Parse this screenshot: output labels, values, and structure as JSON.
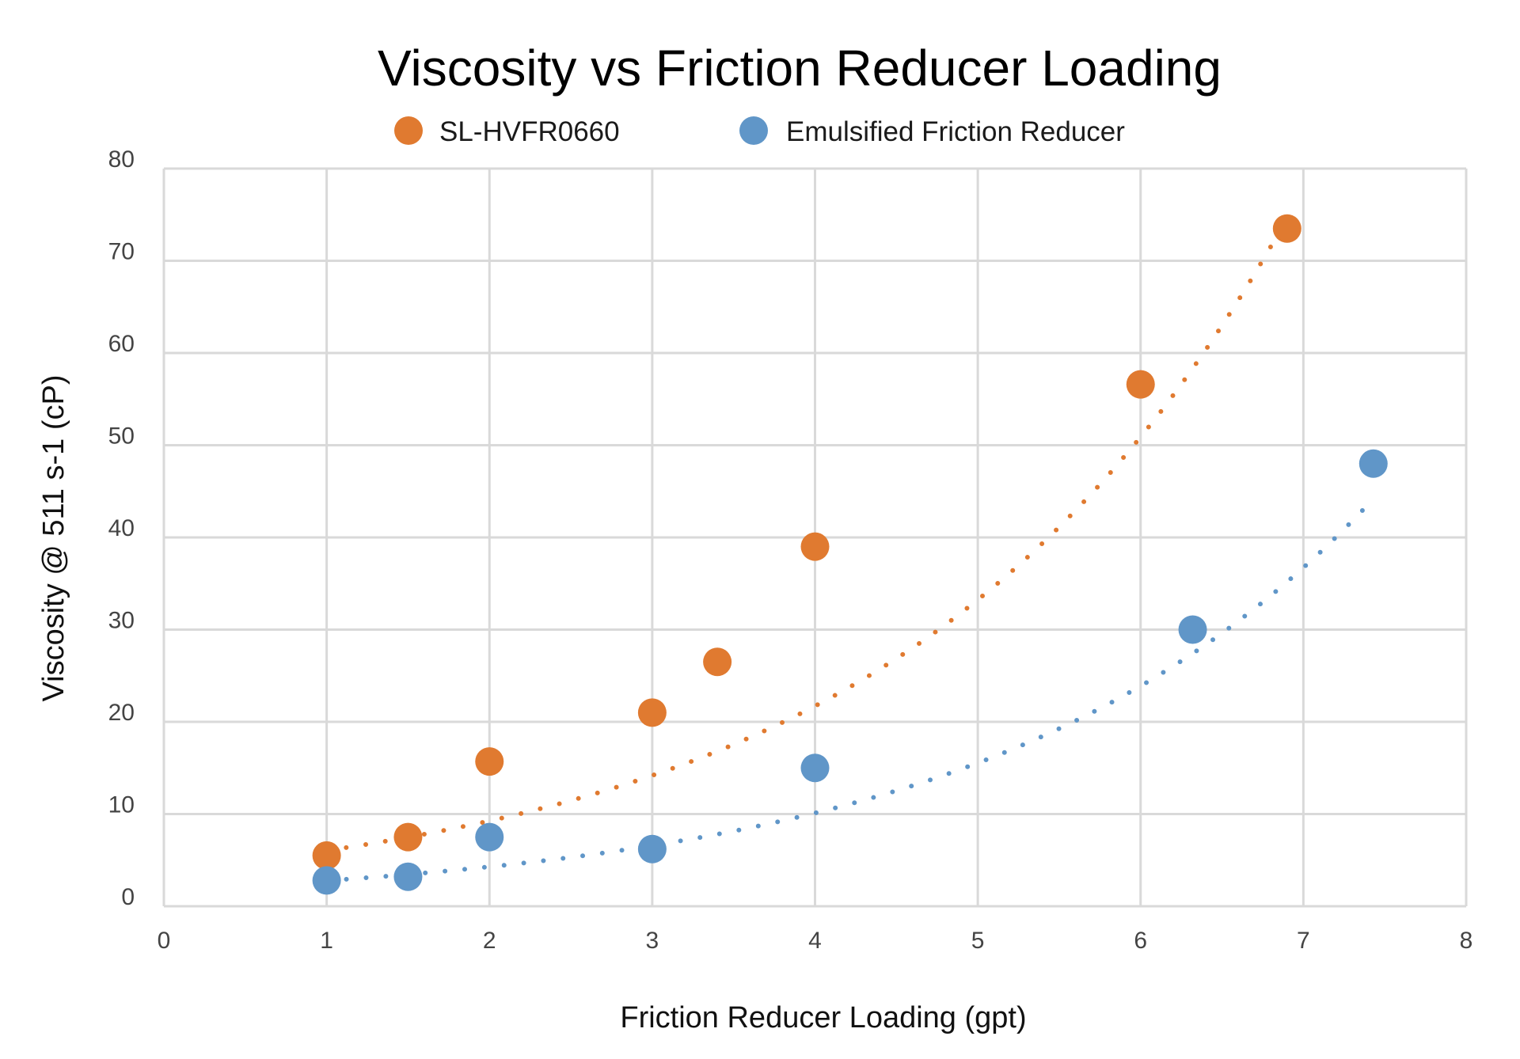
{
  "chart_data": {
    "type": "scatter",
    "title": "Viscosity vs Friction Reducer Loading",
    "xlabel": "Friction Reducer Loading (gpt)",
    "ylabel": "Viscosity @ 511 s-1 (cP)",
    "xlim": [
      0,
      8
    ],
    "ylim": [
      0,
      80
    ],
    "xticks": [
      "0",
      "1",
      "2",
      "3",
      "4",
      "5",
      "6",
      "7",
      "8"
    ],
    "yticks": [
      "0",
      "10",
      "20",
      "30",
      "40",
      "50",
      "60",
      "70",
      "80"
    ],
    "grid": true,
    "legend_position": "top",
    "trendline": "exponential, dotted",
    "series": [
      {
        "name": "SL-HVFR0660",
        "color": "#E07A30",
        "points": [
          {
            "x": 1,
            "y": 5.5
          },
          {
            "x": 1.5,
            "y": 7.5
          },
          {
            "x": 2,
            "y": 15.7
          },
          {
            "x": 3,
            "y": 21
          },
          {
            "x": 3.4,
            "y": 26.5
          },
          {
            "x": 4,
            "y": 39
          },
          {
            "x": 6,
            "y": 56.6
          },
          {
            "x": 6.9,
            "y": 73.5
          }
        ],
        "trend": {
          "x_start": 1,
          "x_end": 6.9,
          "a": 3.95,
          "b": 0.426
        }
      },
      {
        "name": "Emulsified Friction Reducer",
        "color": "#6096C8",
        "points": [
          {
            "x": 1,
            "y": 2.8
          },
          {
            "x": 1.5,
            "y": 3.2
          },
          {
            "x": 2,
            "y": 7.5
          },
          {
            "x": 3,
            "y": 6.2
          },
          {
            "x": 4,
            "y": 15
          },
          {
            "x": 6.32,
            "y": 30
          },
          {
            "x": 7.43,
            "y": 48
          }
        ],
        "trend": {
          "x_start": 1,
          "x_end": 7.43,
          "a": 1.81,
          "b": 0.43
        }
      }
    ]
  }
}
